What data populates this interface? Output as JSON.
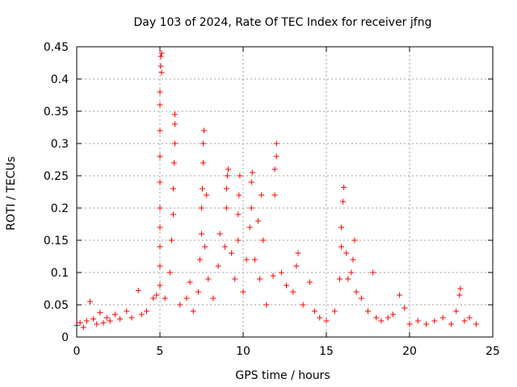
{
  "chart_data": {
    "type": "scatter",
    "title": "Day 103 of 2024, Rate Of TEC Index for receiver jfng",
    "xlabel": "GPS time / hours",
    "ylabel": "ROTI / TECUs",
    "xlim": [
      0,
      25
    ],
    "ylim": [
      0,
      0.45
    ],
    "xticks": [
      "0",
      "5",
      "10",
      "15",
      "20",
      "25"
    ],
    "yticks": [
      "0",
      "0.05",
      "0.1",
      "0.15",
      "0.2",
      "0.25",
      "0.3",
      "0.35",
      "0.4",
      "0.45"
    ],
    "grid": true,
    "marker": "+",
    "colors": {
      "points": "#ff0000",
      "grid": "#a0a0a0",
      "axes": "#000000"
    },
    "series": [
      {
        "name": "ROTI",
        "points": [
          [
            0.0,
            0.018
          ],
          [
            0.2,
            0.022
          ],
          [
            0.4,
            0.015
          ],
          [
            0.6,
            0.025
          ],
          [
            0.8,
            0.055
          ],
          [
            1.0,
            0.028
          ],
          [
            1.2,
            0.02
          ],
          [
            1.4,
            0.038
          ],
          [
            1.6,
            0.022
          ],
          [
            1.8,
            0.03
          ],
          [
            2.0,
            0.025
          ],
          [
            2.3,
            0.035
          ],
          [
            2.6,
            0.028
          ],
          [
            3.0,
            0.04
          ],
          [
            3.3,
            0.03
          ],
          [
            3.7,
            0.072
          ],
          [
            3.9,
            0.035
          ],
          [
            4.2,
            0.04
          ],
          [
            4.6,
            0.06
          ],
          [
            4.8,
            0.065
          ],
          [
            5.0,
            0.08
          ],
          [
            5.0,
            0.11
          ],
          [
            5.0,
            0.14
          ],
          [
            5.0,
            0.17
          ],
          [
            5.0,
            0.2
          ],
          [
            5.0,
            0.24
          ],
          [
            5.0,
            0.28
          ],
          [
            5.0,
            0.32
          ],
          [
            5.0,
            0.36
          ],
          [
            5.0,
            0.38
          ],
          [
            5.05,
            0.42
          ],
          [
            5.05,
            0.435
          ],
          [
            5.1,
            0.44
          ],
          [
            5.1,
            0.41
          ],
          [
            5.3,
            0.06
          ],
          [
            5.6,
            0.1
          ],
          [
            5.7,
            0.15
          ],
          [
            5.8,
            0.19
          ],
          [
            5.8,
            0.23
          ],
          [
            5.85,
            0.27
          ],
          [
            5.9,
            0.3
          ],
          [
            5.9,
            0.33
          ],
          [
            5.9,
            0.345
          ],
          [
            6.2,
            0.05
          ],
          [
            6.6,
            0.06
          ],
          [
            6.8,
            0.085
          ],
          [
            7.0,
            0.04
          ],
          [
            7.3,
            0.07
          ],
          [
            7.4,
            0.12
          ],
          [
            7.5,
            0.16
          ],
          [
            7.5,
            0.2
          ],
          [
            7.55,
            0.23
          ],
          [
            7.6,
            0.27
          ],
          [
            7.6,
            0.3
          ],
          [
            7.65,
            0.32
          ],
          [
            7.7,
            0.14
          ],
          [
            7.8,
            0.22
          ],
          [
            7.9,
            0.09
          ],
          [
            8.2,
            0.06
          ],
          [
            8.5,
            0.11
          ],
          [
            8.6,
            0.16
          ],
          [
            8.9,
            0.14
          ],
          [
            9.0,
            0.2
          ],
          [
            9.0,
            0.23
          ],
          [
            9.05,
            0.25
          ],
          [
            9.1,
            0.26
          ],
          [
            9.3,
            0.13
          ],
          [
            9.5,
            0.09
          ],
          [
            9.7,
            0.15
          ],
          [
            9.7,
            0.19
          ],
          [
            9.75,
            0.22
          ],
          [
            9.8,
            0.25
          ],
          [
            10.0,
            0.07
          ],
          [
            10.2,
            0.12
          ],
          [
            10.4,
            0.17
          ],
          [
            10.5,
            0.2
          ],
          [
            10.5,
            0.24
          ],
          [
            10.55,
            0.255
          ],
          [
            10.7,
            0.12
          ],
          [
            10.9,
            0.18
          ],
          [
            11.0,
            0.09
          ],
          [
            11.1,
            0.22
          ],
          [
            11.2,
            0.15
          ],
          [
            11.4,
            0.05
          ],
          [
            11.8,
            0.095
          ],
          [
            11.9,
            0.22
          ],
          [
            11.9,
            0.26
          ],
          [
            12.0,
            0.28
          ],
          [
            12.0,
            0.3
          ],
          [
            12.3,
            0.1
          ],
          [
            12.6,
            0.08
          ],
          [
            13.0,
            0.07
          ],
          [
            13.2,
            0.11
          ],
          [
            13.3,
            0.13
          ],
          [
            13.6,
            0.05
          ],
          [
            14.0,
            0.085
          ],
          [
            14.3,
            0.04
          ],
          [
            14.6,
            0.03
          ],
          [
            15.0,
            0.025
          ],
          [
            15.5,
            0.04
          ],
          [
            15.8,
            0.09
          ],
          [
            15.9,
            0.14
          ],
          [
            15.9,
            0.17
          ],
          [
            16.0,
            0.21
          ],
          [
            16.05,
            0.232
          ],
          [
            16.2,
            0.13
          ],
          [
            16.3,
            0.09
          ],
          [
            16.5,
            0.1
          ],
          [
            16.6,
            0.12
          ],
          [
            16.7,
            0.15
          ],
          [
            16.8,
            0.07
          ],
          [
            17.1,
            0.06
          ],
          [
            17.5,
            0.04
          ],
          [
            17.8,
            0.1
          ],
          [
            18.0,
            0.03
          ],
          [
            18.3,
            0.025
          ],
          [
            18.7,
            0.03
          ],
          [
            19.0,
            0.035
          ],
          [
            19.4,
            0.065
          ],
          [
            19.7,
            0.045
          ],
          [
            20.0,
            0.02
          ],
          [
            20.5,
            0.025
          ],
          [
            21.0,
            0.02
          ],
          [
            21.5,
            0.025
          ],
          [
            22.0,
            0.03
          ],
          [
            22.5,
            0.02
          ],
          [
            22.8,
            0.04
          ],
          [
            23.0,
            0.065
          ],
          [
            23.05,
            0.075
          ],
          [
            23.3,
            0.025
          ],
          [
            23.6,
            0.03
          ],
          [
            24.0,
            0.02
          ]
        ]
      }
    ]
  }
}
